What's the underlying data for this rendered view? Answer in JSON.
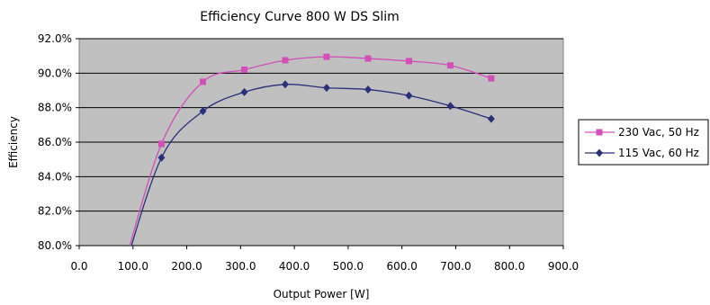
{
  "chart_data": {
    "type": "line",
    "title": "Efficiency Curve 800 W DS Slim",
    "xlabel": "Output Power [W]",
    "ylabel": "Efficiency",
    "xlim": [
      0,
      900
    ],
    "ylim": [
      80,
      92
    ],
    "x_ticks": [
      "0.0",
      "100.0",
      "200.0",
      "300.0",
      "400.0",
      "500.0",
      "600.0",
      "700.0",
      "800.0",
      "900.0"
    ],
    "y_ticks": [
      "80.0%",
      "82.0%",
      "84.0%",
      "86.0%",
      "88.0%",
      "90.0%",
      "92.0%"
    ],
    "grid": "horizontal",
    "legend": "right",
    "series": [
      {
        "name": "230 Vac, 50 Hz",
        "color": "#d24fb8",
        "marker": "square",
        "x": [
          153,
          230,
          307,
          383,
          460,
          537,
          613,
          690,
          766
        ],
        "y": [
          85.9,
          89.5,
          90.2,
          90.75,
          90.95,
          90.85,
          90.7,
          90.45,
          89.7
        ]
      },
      {
        "name": "115 Vac, 60 Hz",
        "color": "#2a2f7a",
        "marker": "diamond",
        "x": [
          153,
          230,
          307,
          383,
          460,
          537,
          613,
          690,
          766
        ],
        "y": [
          85.1,
          87.8,
          88.9,
          89.35,
          89.15,
          89.05,
          88.7,
          88.1,
          87.35
        ]
      }
    ]
  }
}
